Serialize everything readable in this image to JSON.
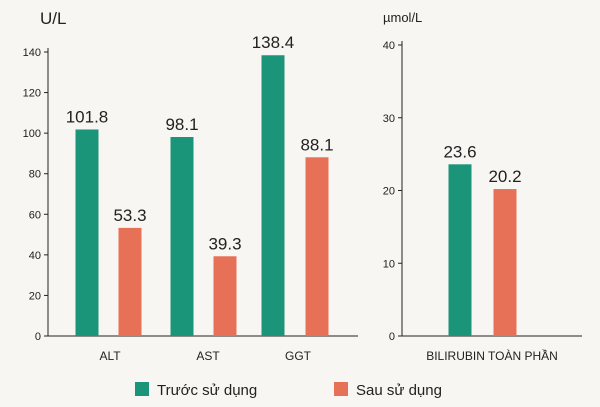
{
  "colors": {
    "before": "#1b957a",
    "after": "#e77157"
  },
  "legend": {
    "before_label": "Trước sử dụng",
    "after_label": "Sau sử dụng"
  },
  "chart_data": [
    {
      "type": "bar",
      "ylabel": "U/L",
      "ylim": [
        0,
        140
      ],
      "yticks": [
        0,
        20,
        40,
        60,
        80,
        100,
        120,
        140
      ],
      "categories": [
        "ALT",
        "AST",
        "GGT"
      ],
      "series": [
        {
          "name": "Trước sử dụng",
          "values": [
            101.8,
            98.1,
            138.4
          ],
          "labels": [
            "101.8",
            "98.1",
            "138.4"
          ]
        },
        {
          "name": "Sau sử dụng",
          "values": [
            53.3,
            39.3,
            88.1
          ],
          "labels": [
            "53.3",
            "39.3",
            "88.1"
          ]
        }
      ],
      "grid": false
    },
    {
      "type": "bar",
      "ylabel": "µmol/L",
      "ylim": [
        0,
        40
      ],
      "yticks": [
        0,
        10,
        20,
        30,
        40
      ],
      "categories": [
        "BILIRUBIN TOÀN PHẦN"
      ],
      "series": [
        {
          "name": "Trước sử dụng",
          "values": [
            23.6
          ],
          "labels": [
            "23.6"
          ]
        },
        {
          "name": "Sau sử dụng",
          "values": [
            20.2
          ],
          "labels": [
            "20.2"
          ]
        }
      ],
      "grid": false
    }
  ]
}
